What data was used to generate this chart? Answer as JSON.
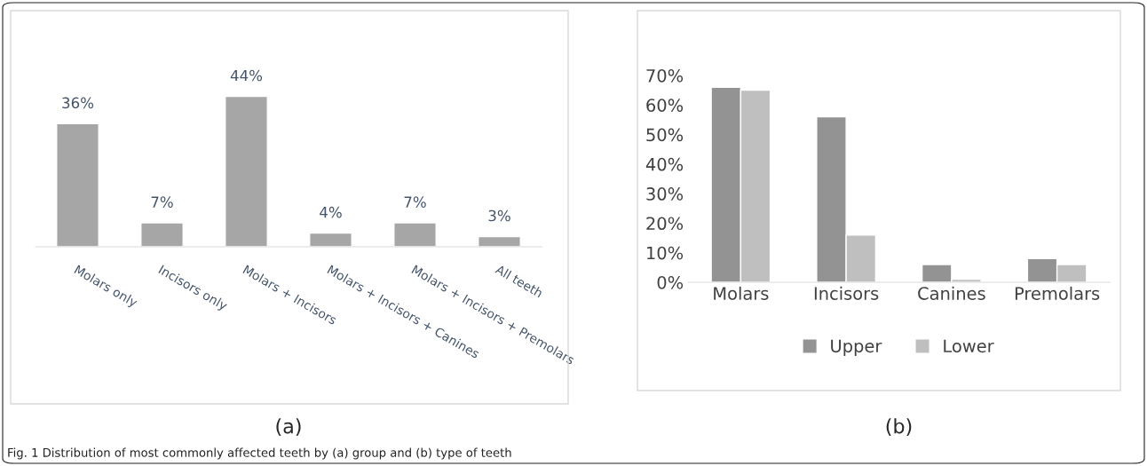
{
  "chart_data": [
    {
      "type": "bar",
      "xlabel": "(a)",
      "categories": [
        "Molars only",
        "Incisors only",
        "Molars + Incisors",
        "Molars + Incisors + Canines",
        "Molars + Incisors + Premolars",
        "All teeth"
      ],
      "values": [
        36,
        7,
        44,
        4,
        7,
        3
      ],
      "value_labels": [
        "36%",
        "7%",
        "44%",
        "4%",
        "7%",
        "3%"
      ],
      "color": "#a6a6a6",
      "grid": false,
      "legend": false,
      "tick_labels": "x",
      "annotations": [
        "Fig. 1 Distribution of most commonly affected teeth by (a) group and (b) type of teeth"
      ]
    },
    {
      "type": "bar",
      "xlabel": "(b)",
      "categories": [
        "Molars",
        "Incisors",
        "Canines",
        "Premolars"
      ],
      "series": [
        {
          "name": "Upper",
          "color": "#939393",
          "values": [
            66,
            56,
            6,
            8
          ]
        },
        {
          "name": "Lower",
          "color": "#bfbfbf",
          "values": [
            65,
            16,
            1,
            6
          ]
        }
      ],
      "ylim": [
        0,
        70
      ],
      "yticks": [
        {
          "value": 0,
          "label": "0%"
        },
        {
          "value": 10,
          "label": "10%"
        },
        {
          "value": 20,
          "label": "20%"
        },
        {
          "value": 30,
          "label": "30%"
        },
        {
          "value": 40,
          "label": "40%"
        },
        {
          "value": 50,
          "label": "50%"
        },
        {
          "value": 60,
          "label": "60%"
        },
        {
          "value": 70,
          "label": "70%"
        }
      ],
      "grid": false,
      "legend": "bottom"
    }
  ]
}
